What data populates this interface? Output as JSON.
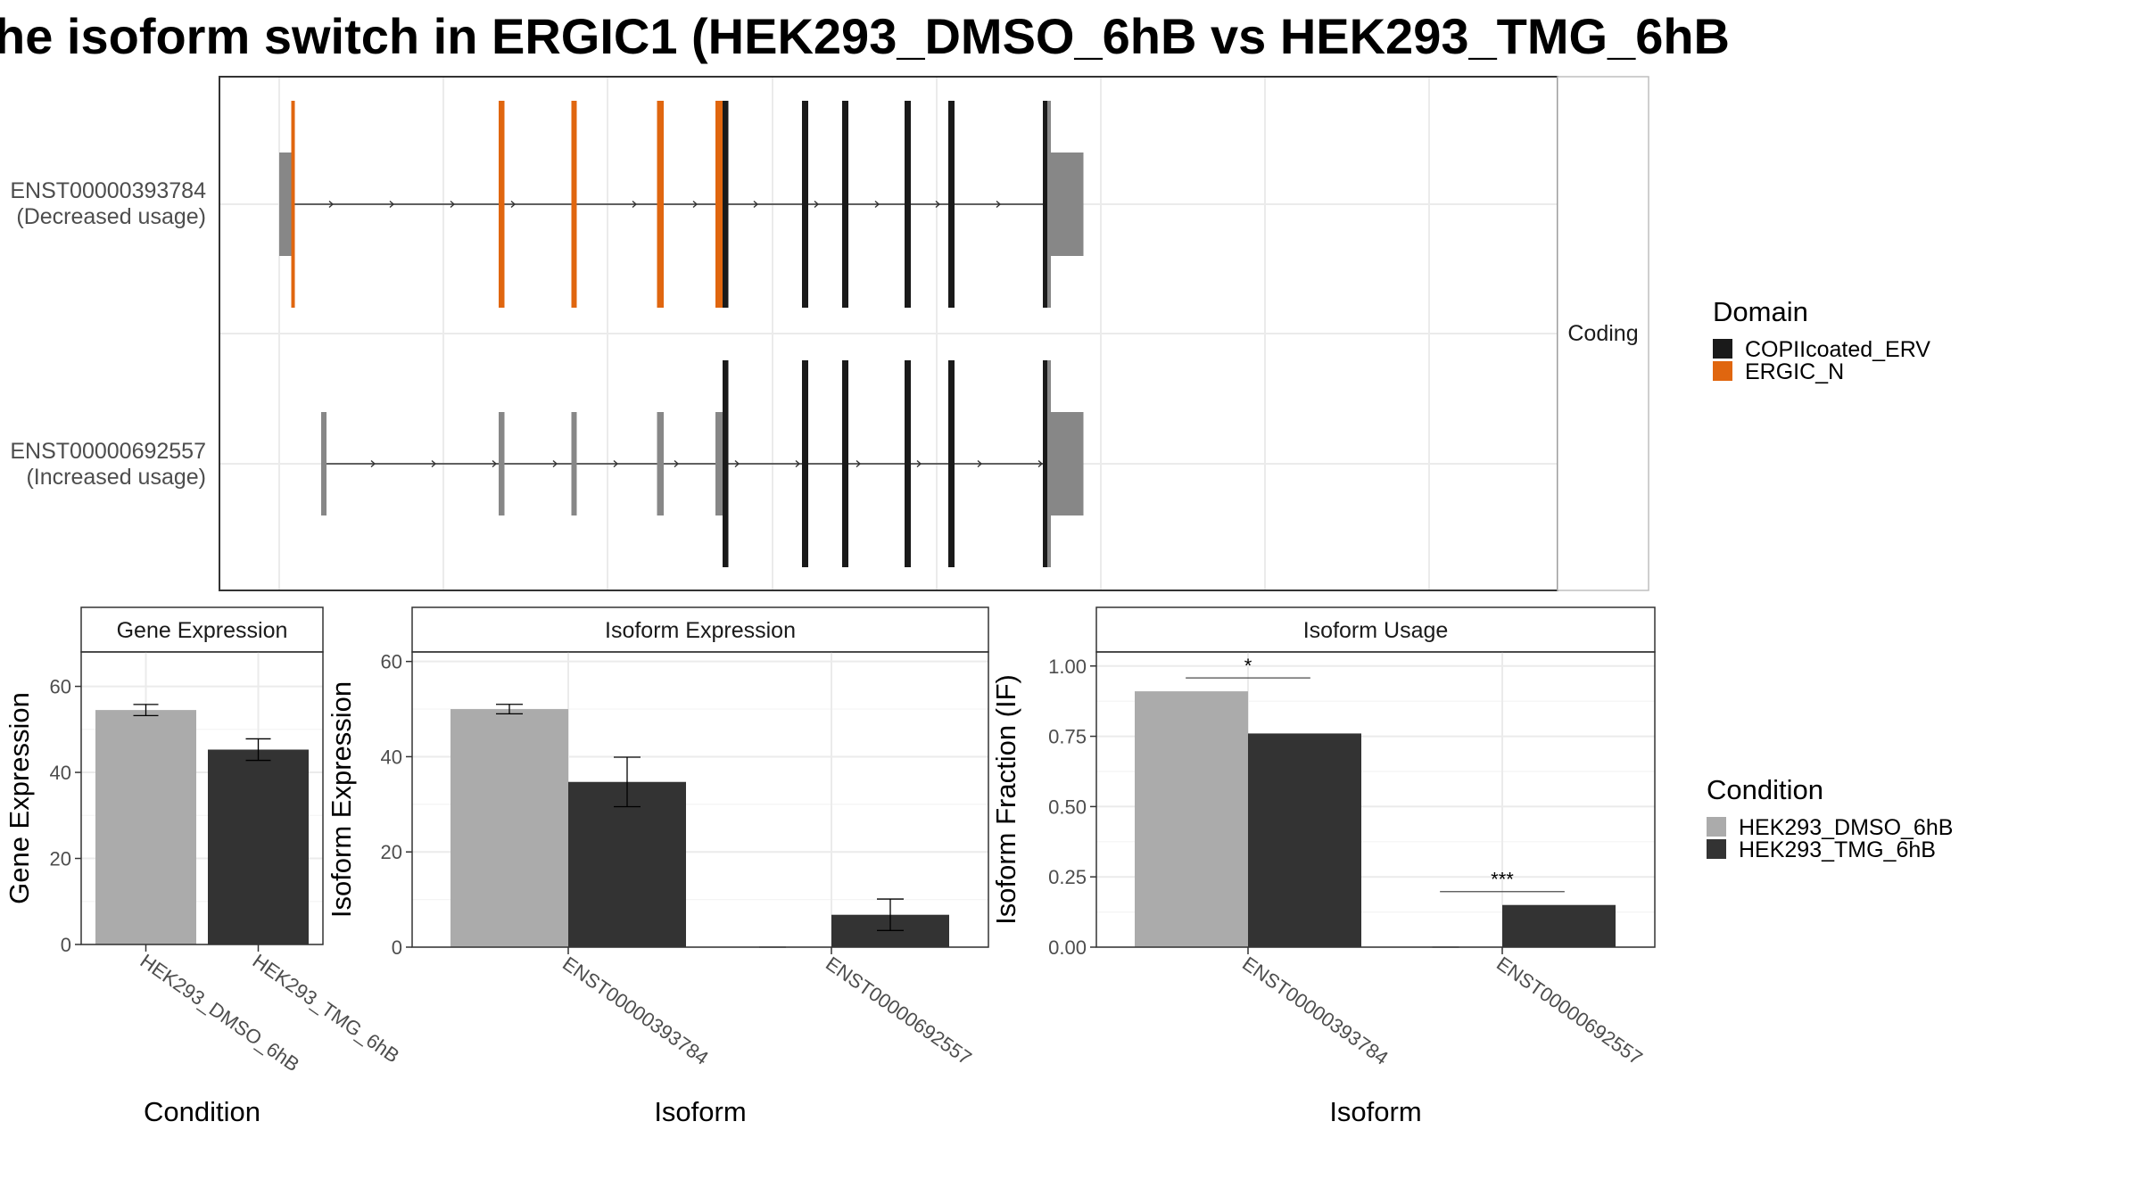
{
  "title": "he isoform switch in ERGIC1 (HEK293_DMSO_6hB vs HEK293_TMG_6hB",
  "colors": {
    "dmso": "#ababab",
    "tmg": "#333333",
    "copii": "#1a1a1a",
    "ergic": "#e0660f",
    "utr": "#878787"
  },
  "chart_data": [
    {
      "type": "gene-structure",
      "facet_label": "Coding",
      "tracks": [
        {
          "label": "ENST00000393784",
          "sublabel": "(Decreased usage)",
          "segments": [
            {
              "start": 0,
              "end": 27,
              "kind": "utr"
            },
            {
              "start": 27,
              "end": 35,
              "kind": "ERGIC_N"
            },
            {
              "start": 492,
              "end": 505,
              "kind": "ERGIC_N"
            },
            {
              "start": 655,
              "end": 667,
              "kind": "ERGIC_N"
            },
            {
              "start": 847,
              "end": 862,
              "kind": "ERGIC_N"
            },
            {
              "start": 978,
              "end": 994,
              "kind": "ERGIC_N"
            },
            {
              "start": 994,
              "end": 1007,
              "kind": "COPIIcoated_ERV"
            },
            {
              "start": 1172,
              "end": 1186,
              "kind": "COPIIcoated_ERV"
            },
            {
              "start": 1262,
              "end": 1276,
              "kind": "COPIIcoated_ERV"
            },
            {
              "start": 1402,
              "end": 1416,
              "kind": "COPIIcoated_ERV"
            },
            {
              "start": 1500,
              "end": 1514,
              "kind": "COPIIcoated_ERV"
            },
            {
              "start": 1712,
              "end": 1722,
              "kind": "COPIIcoated_ERV"
            },
            {
              "start": 1722,
              "end": 1730,
              "kind": "utr"
            },
            {
              "start": 1730,
              "end": 1803,
              "kind": "utr"
            }
          ]
        },
        {
          "label": "ENST00000692557",
          "sublabel": "(Increased usage)",
          "segments": [
            {
              "start": 94,
              "end": 106,
              "kind": "utr"
            },
            {
              "start": 492,
              "end": 505,
              "kind": "utr"
            },
            {
              "start": 655,
              "end": 667,
              "kind": "utr"
            },
            {
              "start": 847,
              "end": 862,
              "kind": "utr"
            },
            {
              "start": 978,
              "end": 994,
              "kind": "utr"
            },
            {
              "start": 994,
              "end": 1007,
              "kind": "COPIIcoated_ERV"
            },
            {
              "start": 1172,
              "end": 1186,
              "kind": "COPIIcoated_ERV"
            },
            {
              "start": 1262,
              "end": 1276,
              "kind": "COPIIcoated_ERV"
            },
            {
              "start": 1402,
              "end": 1416,
              "kind": "COPIIcoated_ERV"
            },
            {
              "start": 1500,
              "end": 1514,
              "kind": "COPIIcoated_ERV"
            },
            {
              "start": 1712,
              "end": 1722,
              "kind": "COPIIcoated_ERV"
            },
            {
              "start": 1722,
              "end": 1730,
              "kind": "utr"
            },
            {
              "start": 1730,
              "end": 1803,
              "kind": "utr"
            }
          ]
        }
      ],
      "legend": {
        "title": "Domain",
        "entries": [
          "COPIIcoated_ERV",
          "ERGIC_N"
        ]
      }
    },
    {
      "type": "bar",
      "facet_label": "Gene Expression",
      "xlabel": "Condition",
      "ylabel": "Gene Expression",
      "categories": [
        "HEK293_DMSO_6hB",
        "HEK293_TMG_6hB"
      ],
      "values": [
        54.5,
        45.3
      ],
      "errors": [
        1.3,
        2.5
      ],
      "yticks": [
        0,
        20,
        40,
        60
      ],
      "ylim": [
        0,
        68
      ]
    },
    {
      "type": "bar",
      "facet_label": "Isoform Expression",
      "xlabel": "Isoform",
      "ylabel": "Isoform Expression",
      "categories": [
        "ENST00000393784",
        "ENST00000692557"
      ],
      "series": [
        {
          "name": "HEK293_DMSO_6hB",
          "values": [
            50.0,
            0.1
          ],
          "errors": [
            1.0,
            0.0
          ]
        },
        {
          "name": "HEK293_TMG_6hB",
          "values": [
            34.7,
            6.8
          ],
          "errors": [
            5.2,
            3.3
          ]
        }
      ],
      "yticks": [
        0,
        20,
        40,
        60
      ],
      "ylim": [
        0,
        62
      ]
    },
    {
      "type": "bar",
      "facet_label": "Isoform Usage",
      "xlabel": "Isoform",
      "ylabel": "Isoform Fraction (IF)",
      "categories": [
        "ENST00000393784",
        "ENST00000692557"
      ],
      "series": [
        {
          "name": "HEK293_DMSO_6hB",
          "values": [
            0.91,
            0.0
          ]
        },
        {
          "name": "HEK293_TMG_6hB",
          "values": [
            0.76,
            0.15
          ]
        }
      ],
      "significance": [
        "*",
        "***"
      ],
      "yticks": [
        "0.00",
        "0.25",
        "0.50",
        "0.75",
        "1.00"
      ],
      "ylim": [
        0,
        1.05
      ]
    }
  ],
  "legend_condition": {
    "title": "Condition",
    "entries": [
      "HEK293_DMSO_6hB",
      "HEK293_TMG_6hB"
    ]
  }
}
